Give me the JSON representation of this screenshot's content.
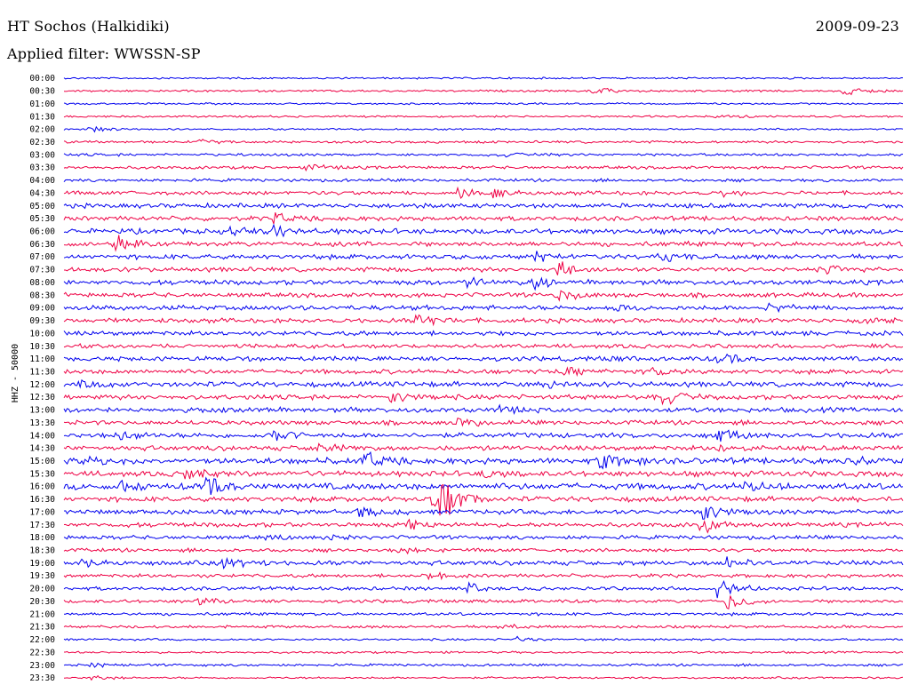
{
  "header": {
    "station": "HT Sochos (Halkidiki)",
    "date": "2009-09-23",
    "filter": "Applied filter: WWSSN-SP"
  },
  "colors": {
    "trace_a": "#0000ee",
    "trace_b": "#ee0044"
  },
  "chart_data": {
    "type": "line",
    "title": "HT Sochos (Halkidiki)",
    "ylabel": "HHZ - 50000",
    "row_interval_minutes": 30,
    "color_cycle": [
      "blue",
      "red"
    ],
    "tick_labels": [
      "00:00",
      "00:30",
      "01:00",
      "01:30",
      "02:00",
      "02:30",
      "03:00",
      "03:30",
      "04:00",
      "04:30",
      "05:00",
      "05:30",
      "06:00",
      "06:30",
      "07:00",
      "07:30",
      "08:00",
      "08:30",
      "09:00",
      "09:30",
      "10:00",
      "10:30",
      "11:00",
      "11:30",
      "12:00",
      "12:30",
      "13:00",
      "13:30",
      "14:00",
      "14:30",
      "15:00",
      "15:30",
      "16:00",
      "16:30",
      "17:00",
      "17:30",
      "18:00",
      "18:30",
      "19:00",
      "19:30",
      "20:00",
      "20:30",
      "21:00",
      "21:30",
      "22:00",
      "22:30",
      "23:00",
      "23:30"
    ],
    "series": [
      {
        "label": "00:00",
        "amp": 1.2,
        "events": []
      },
      {
        "label": "00:30",
        "amp": 1.3,
        "events": [
          {
            "x": 0.63,
            "a": 6
          },
          {
            "x": 0.93,
            "a": 6
          }
        ]
      },
      {
        "label": "01:00",
        "amp": 1.2,
        "events": []
      },
      {
        "label": "01:30",
        "amp": 1.3,
        "events": [
          {
            "x": 0.78,
            "a": 3
          }
        ]
      },
      {
        "label": "02:00",
        "amp": 1.2,
        "events": [
          {
            "x": 0.03,
            "a": 5
          }
        ]
      },
      {
        "label": "02:30",
        "amp": 1.6,
        "events": [
          {
            "x": 0.16,
            "a": 3
          }
        ]
      },
      {
        "label": "03:00",
        "amp": 1.8,
        "events": [
          {
            "x": 0.52,
            "a": 3
          }
        ]
      },
      {
        "label": "03:30",
        "amp": 2.0,
        "events": [
          {
            "x": 0.29,
            "a": 4
          }
        ]
      },
      {
        "label": "04:00",
        "amp": 2.0,
        "events": []
      },
      {
        "label": "04:30",
        "amp": 2.6,
        "events": [
          {
            "x": 0.47,
            "a": 9
          },
          {
            "x": 0.51,
            "a": 6
          },
          {
            "x": 0.78,
            "a": 5
          }
        ]
      },
      {
        "label": "05:00",
        "amp": 3.0,
        "events": [
          {
            "x": 0.4,
            "a": 2
          }
        ]
      },
      {
        "label": "05:30",
        "amp": 3.0,
        "events": [
          {
            "x": 0.25,
            "a": 8
          }
        ]
      },
      {
        "label": "06:00",
        "amp": 3.4,
        "events": [
          {
            "x": 0.2,
            "a": 8
          },
          {
            "x": 0.25,
            "a": 6
          }
        ]
      },
      {
        "label": "06:30",
        "amp": 3.2,
        "events": [
          {
            "x": 0.06,
            "a": 14
          }
        ]
      },
      {
        "label": "07:00",
        "amp": 3.2,
        "events": [
          {
            "x": 0.56,
            "a": 6
          },
          {
            "x": 0.71,
            "a": 8
          }
        ]
      },
      {
        "label": "07:30",
        "amp": 3.0,
        "events": [
          {
            "x": 0.59,
            "a": 12
          },
          {
            "x": 0.91,
            "a": 4
          }
        ]
      },
      {
        "label": "08:00",
        "amp": 3.2,
        "events": [
          {
            "x": 0.48,
            "a": 7
          },
          {
            "x": 0.56,
            "a": 8
          }
        ]
      },
      {
        "label": "08:30",
        "amp": 3.0,
        "events": [
          {
            "x": 0.59,
            "a": 8
          }
        ]
      },
      {
        "label": "09:00",
        "amp": 3.2,
        "events": [
          {
            "x": 0.65,
            "a": 6
          },
          {
            "x": 0.84,
            "a": 6
          }
        ]
      },
      {
        "label": "09:30",
        "amp": 3.0,
        "events": [
          {
            "x": 0.42,
            "a": 10
          },
          {
            "x": 0.95,
            "a": 6
          }
        ]
      },
      {
        "label": "10:00",
        "amp": 3.0,
        "events": []
      },
      {
        "label": "10:30",
        "amp": 2.8,
        "events": []
      },
      {
        "label": "11:00",
        "amp": 3.0,
        "events": [
          {
            "x": 0.65,
            "a": 4
          },
          {
            "x": 0.78,
            "a": 8
          }
        ]
      },
      {
        "label": "11:30",
        "amp": 3.0,
        "events": [
          {
            "x": 0.59,
            "a": 6
          },
          {
            "x": 0.7,
            "a": 5
          }
        ]
      },
      {
        "label": "12:00",
        "amp": 3.4,
        "events": [
          {
            "x": 0.02,
            "a": 6
          },
          {
            "x": 0.58,
            "a": 4
          }
        ]
      },
      {
        "label": "12:30",
        "amp": 3.2,
        "events": [
          {
            "x": 0.39,
            "a": 8
          },
          {
            "x": 0.71,
            "a": 14
          }
        ]
      },
      {
        "label": "13:00",
        "amp": 3.2,
        "events": [
          {
            "x": 0.52,
            "a": 4
          }
        ]
      },
      {
        "label": "13:30",
        "amp": 3.0,
        "events": [
          {
            "x": 0.47,
            "a": 6
          }
        ]
      },
      {
        "label": "14:00",
        "amp": 3.4,
        "events": [
          {
            "x": 0.06,
            "a": 6
          },
          {
            "x": 0.25,
            "a": 7
          },
          {
            "x": 0.78,
            "a": 8
          }
        ]
      },
      {
        "label": "14:30",
        "amp": 3.2,
        "events": [
          {
            "x": 0.3,
            "a": 5
          },
          {
            "x": 0.78,
            "a": 4
          }
        ]
      },
      {
        "label": "15:00",
        "amp": 4.0,
        "events": [
          {
            "x": 0.02,
            "a": 9
          },
          {
            "x": 0.36,
            "a": 12
          },
          {
            "x": 0.64,
            "a": 14
          },
          {
            "x": 0.94,
            "a": 7
          }
        ]
      },
      {
        "label": "15:30",
        "amp": 3.6,
        "events": [
          {
            "x": 0.14,
            "a": 10
          },
          {
            "x": 0.5,
            "a": 6
          }
        ]
      },
      {
        "label": "16:00",
        "amp": 4.2,
        "events": [
          {
            "x": 0.07,
            "a": 8
          },
          {
            "x": 0.17,
            "a": 12
          },
          {
            "x": 0.81,
            "a": 6
          }
        ]
      },
      {
        "label": "16:30",
        "amp": 3.4,
        "events": [
          {
            "x": 0.45,
            "a": 22
          },
          {
            "x": 0.44,
            "a": 18
          }
        ]
      },
      {
        "label": "17:00",
        "amp": 3.2,
        "events": [
          {
            "x": 0.35,
            "a": 6
          },
          {
            "x": 0.76,
            "a": 14
          }
        ]
      },
      {
        "label": "17:30",
        "amp": 3.0,
        "events": [
          {
            "x": 0.41,
            "a": 8
          },
          {
            "x": 0.76,
            "a": 12
          }
        ]
      },
      {
        "label": "18:00",
        "amp": 2.6,
        "events": [
          {
            "x": 0.24,
            "a": 4
          },
          {
            "x": 0.31,
            "a": 4
          }
        ]
      },
      {
        "label": "18:30",
        "amp": 2.4,
        "events": [
          {
            "x": 0.4,
            "a": 3
          }
        ]
      },
      {
        "label": "19:00",
        "amp": 3.0,
        "events": [
          {
            "x": 0.02,
            "a": 6
          },
          {
            "x": 0.19,
            "a": 7
          },
          {
            "x": 0.79,
            "a": 8
          }
        ]
      },
      {
        "label": "19:30",
        "amp": 2.4,
        "events": [
          {
            "x": 0.43,
            "a": 5
          }
        ]
      },
      {
        "label": "20:00",
        "amp": 2.4,
        "events": [
          {
            "x": 0.48,
            "a": 8
          },
          {
            "x": 0.78,
            "a": 14
          }
        ]
      },
      {
        "label": "20:30",
        "amp": 2.2,
        "events": [
          {
            "x": 0.16,
            "a": 4
          },
          {
            "x": 0.79,
            "a": 14
          }
        ]
      },
      {
        "label": "21:00",
        "amp": 2.0,
        "events": []
      },
      {
        "label": "21:30",
        "amp": 1.8,
        "events": [
          {
            "x": 0.52,
            "a": 4
          }
        ]
      },
      {
        "label": "22:00",
        "amp": 1.4,
        "events": [
          {
            "x": 0.54,
            "a": 3
          }
        ]
      },
      {
        "label": "22:30",
        "amp": 1.4,
        "events": []
      },
      {
        "label": "23:00",
        "amp": 1.6,
        "events": [
          {
            "x": 0.03,
            "a": 3
          }
        ]
      },
      {
        "label": "23:30",
        "amp": 1.3,
        "events": [
          {
            "x": 0.03,
            "a": 3
          }
        ]
      }
    ]
  }
}
